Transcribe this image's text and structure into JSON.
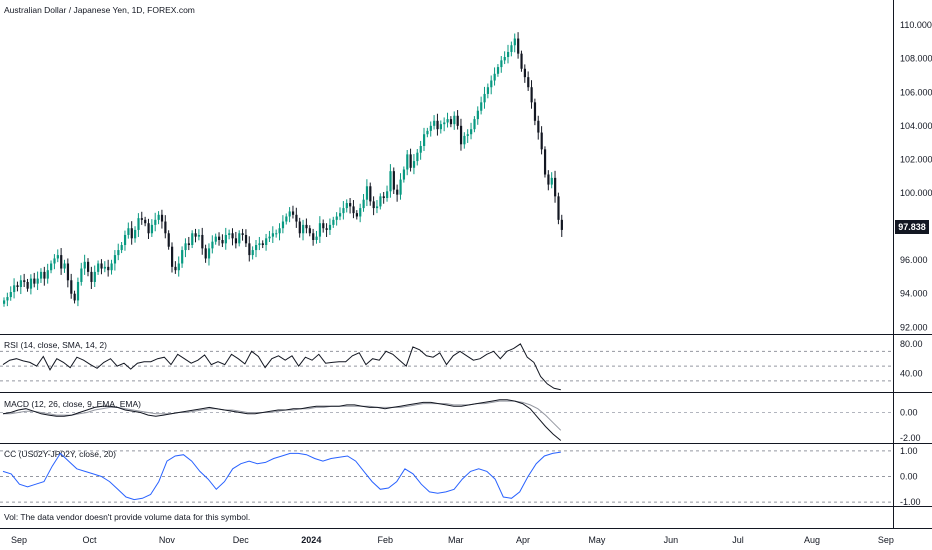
{
  "header": {
    "title": "Australian Dollar / Japanese Yen, 1D, FOREX.com"
  },
  "colors": {
    "up": "#089981",
    "down": "#131722",
    "rsi": "#131722",
    "macd": "#131722",
    "signal": "#9598a1",
    "cc": "#2962ff",
    "grid": "#b2b5be",
    "frame": "#131722"
  },
  "chart_data": [
    {
      "type": "candlestick",
      "title": "Australian Dollar / Japanese Yen, 1D, FOREX.com",
      "last_price_label": "97.838",
      "y_ticks": [
        "110.000",
        "108.000",
        "106.000",
        "104.000",
        "102.000",
        "100.000",
        "98.000",
        "96.000",
        "94.000",
        "92.000"
      ],
      "ylim": [
        91.6,
        110.9
      ],
      "closes": [
        93.6,
        93.8,
        94.1,
        94.5,
        94.4,
        94.8,
        94.7,
        94.3,
        94.9,
        94.6,
        94.9,
        95.3,
        94.9,
        95.4,
        95.8,
        96.1,
        96.3,
        95.5,
        95.8,
        94.8,
        94.0,
        93.6,
        94.7,
        95.5,
        95.9,
        95.3,
        94.7,
        95.3,
        95.8,
        95.5,
        95.6,
        95.4,
        95.8,
        96.3,
        96.6,
        96.9,
        97.5,
        97.9,
        97.3,
        97.8,
        98.5,
        98.4,
        98.2,
        97.6,
        98.1,
        98.4,
        98.7,
        98.3,
        97.6,
        96.8,
        95.6,
        95.4,
        95.8,
        96.6,
        97.0,
        96.9,
        97.6,
        97.4,
        97.5,
        96.7,
        96.1,
        96.7,
        97.1,
        97.4,
        97.2,
        97.0,
        97.5,
        97.6,
        97.3,
        97.0,
        97.6,
        97.5,
        97.0,
        96.3,
        96.6,
        96.9,
        97.0,
        96.9,
        97.3,
        97.4,
        97.6,
        97.6,
        97.9,
        98.3,
        98.6,
        98.9,
        98.7,
        98.3,
        97.6,
        98.1,
        97.9,
        97.6,
        97.2,
        97.4,
        98.2,
        97.9,
        97.8,
        98.1,
        98.4,
        98.6,
        98.8,
        99.1,
        99.4,
        99.2,
        98.8,
        98.6,
        99.1,
        99.6,
        100.4,
        99.5,
        99.1,
        99.2,
        99.8,
        99.7,
        100.1,
        101.3,
        100.2,
        99.9,
        100.8,
        101.4,
        102.3,
        101.5,
        101.9,
        102.4,
        102.8,
        103.5,
        103.7,
        104.0,
        104.3,
        103.8,
        104.1,
        104.2,
        104.4,
        104.1,
        104.6,
        104.0,
        102.9,
        103.4,
        103.5,
        103.8,
        104.4,
        104.9,
        105.4,
        105.9,
        106.3,
        106.7,
        107.1,
        107.5,
        107.9,
        108.1,
        108.4,
        108.8,
        109.2,
        108.3,
        107.4,
        106.9,
        106.3,
        105.4,
        104.3,
        103.6,
        102.6,
        101.1,
        100.5,
        100.9,
        99.8,
        98.4,
        97.8
      ],
      "x_ticks": [
        {
          "label": "Sep",
          "idx": 0
        },
        {
          "label": "Oct",
          "idx": 21
        },
        {
          "label": "Nov",
          "idx": 44
        },
        {
          "label": "Dec",
          "idx": 66
        },
        {
          "label": "2024",
          "idx": 87,
          "bold": true
        },
        {
          "label": "Feb",
          "idx": 109
        },
        {
          "label": "Mar",
          "idx": 130
        },
        {
          "label": "Apr",
          "idx": 150
        },
        {
          "label": "May",
          "idx": 172
        },
        {
          "label": "Jun",
          "idx": 194
        },
        {
          "label": "Jul",
          "idx": 214
        },
        {
          "label": "Aug",
          "idx": 236
        },
        {
          "label": "Sep",
          "idx": 258
        }
      ]
    },
    {
      "type": "line",
      "title": "RSI (14, close, SMA, 14, 2)",
      "y_ticks": [
        "80.00",
        "40.00"
      ],
      "levels": [
        70,
        50,
        30
      ],
      "ylim": [
        15,
        88
      ],
      "series": [
        {
          "values": [
            52,
            58,
            60,
            57,
            55,
            50,
            63,
            45,
            60,
            55,
            48,
            62,
            58,
            52,
            47,
            55,
            60,
            50,
            54,
            46,
            54,
            56,
            56,
            60,
            62,
            52,
            66,
            60,
            54,
            58,
            65,
            52,
            56,
            52,
            66,
            60,
            53,
            70,
            63,
            48,
            60,
            64,
            58,
            64,
            50,
            62,
            58,
            66,
            54,
            55,
            56,
            56,
            64,
            68,
            52,
            60,
            58,
            70,
            66,
            58,
            50,
            76,
            72,
            64,
            62,
            68,
            52,
            64,
            70,
            64,
            58,
            60,
            66,
            70,
            60,
            70,
            74,
            80,
            62,
            55,
            36,
            26,
            20,
            18
          ]
        }
      ]
    },
    {
      "type": "line",
      "title": "MACD (12, 26, close, 9, EMA, EMA)",
      "y_ticks": [
        "0.00",
        "-2.00"
      ],
      "ylim": [
        -2.4,
        1.3
      ],
      "series": [
        {
          "values": [
            -0.1,
            0.0,
            0.2,
            0.3,
            0.1,
            -0.1,
            -0.2,
            -0.3,
            -0.3,
            -0.2,
            0.0,
            0.2,
            0.4,
            0.5,
            0.5,
            0.4,
            0.2,
            0.1,
            0.0,
            -0.2,
            -0.3,
            -0.2,
            -0.1,
            0.0,
            0.1,
            0.2,
            0.3,
            0.4,
            0.3,
            0.2,
            0.1,
            0.0,
            -0.1,
            -0.1,
            0.0,
            0.1,
            0.2,
            0.2,
            0.3,
            0.3,
            0.4,
            0.5,
            0.5,
            0.5,
            0.5,
            0.6,
            0.6,
            0.5,
            0.4,
            0.4,
            0.3,
            0.4,
            0.5,
            0.6,
            0.7,
            0.8,
            0.8,
            0.7,
            0.6,
            0.5,
            0.5,
            0.6,
            0.7,
            0.8,
            0.9,
            1.0,
            1.0,
            0.9,
            0.7,
            0.3,
            -0.4,
            -1.1,
            -1.7,
            -2.2
          ]
        },
        {
          "values": [
            -0.1,
            -0.1,
            0.0,
            0.1,
            0.1,
            0.0,
            -0.1,
            -0.2,
            -0.2,
            -0.2,
            -0.1,
            0.0,
            0.2,
            0.3,
            0.4,
            0.4,
            0.3,
            0.2,
            0.1,
            0.0,
            -0.1,
            -0.1,
            -0.1,
            0.0,
            0.0,
            0.1,
            0.2,
            0.3,
            0.3,
            0.2,
            0.2,
            0.1,
            0.0,
            0.0,
            0.0,
            0.0,
            0.1,
            0.2,
            0.2,
            0.3,
            0.3,
            0.4,
            0.4,
            0.5,
            0.5,
            0.5,
            0.5,
            0.5,
            0.5,
            0.4,
            0.4,
            0.4,
            0.4,
            0.5,
            0.6,
            0.7,
            0.7,
            0.7,
            0.7,
            0.6,
            0.6,
            0.6,
            0.7,
            0.7,
            0.8,
            0.9,
            0.9,
            0.9,
            0.8,
            0.6,
            0.3,
            -0.2,
            -0.8,
            -1.4
          ]
        }
      ]
    },
    {
      "type": "line",
      "title": "CC (US02Y-JP02Y, close, 20)",
      "y_ticks": [
        "1.00",
        "0.00",
        "-1.00"
      ],
      "levels": [
        1,
        0,
        -1
      ],
      "ylim": [
        -1.15,
        1.15
      ],
      "series": [
        {
          "values": [
            0.2,
            0.1,
            -0.3,
            -0.4,
            -0.3,
            -0.2,
            0.4,
            0.9,
            0.6,
            0.3,
            0.2,
            0.1,
            0.0,
            -0.2,
            -0.5,
            -0.8,
            -0.9,
            -0.85,
            -0.7,
            -0.2,
            0.6,
            0.8,
            0.85,
            0.6,
            0.2,
            -0.1,
            -0.5,
            -0.2,
            0.3,
            0.5,
            0.6,
            0.5,
            0.55,
            0.7,
            0.8,
            0.9,
            0.9,
            0.85,
            0.7,
            0.6,
            0.7,
            0.75,
            0.8,
            0.6,
            0.2,
            -0.2,
            -0.5,
            -0.45,
            -0.2,
            0.3,
            0.1,
            -0.3,
            -0.6,
            -0.65,
            -0.6,
            -0.5,
            -0.1,
            0.2,
            0.3,
            0.2,
            -0.1,
            -0.8,
            -0.85,
            -0.6,
            0.0,
            0.5,
            0.8,
            0.9,
            0.95
          ]
        }
      ]
    }
  ],
  "volume_note": "Vol: The data vendor doesn't provide volume data for this symbol."
}
